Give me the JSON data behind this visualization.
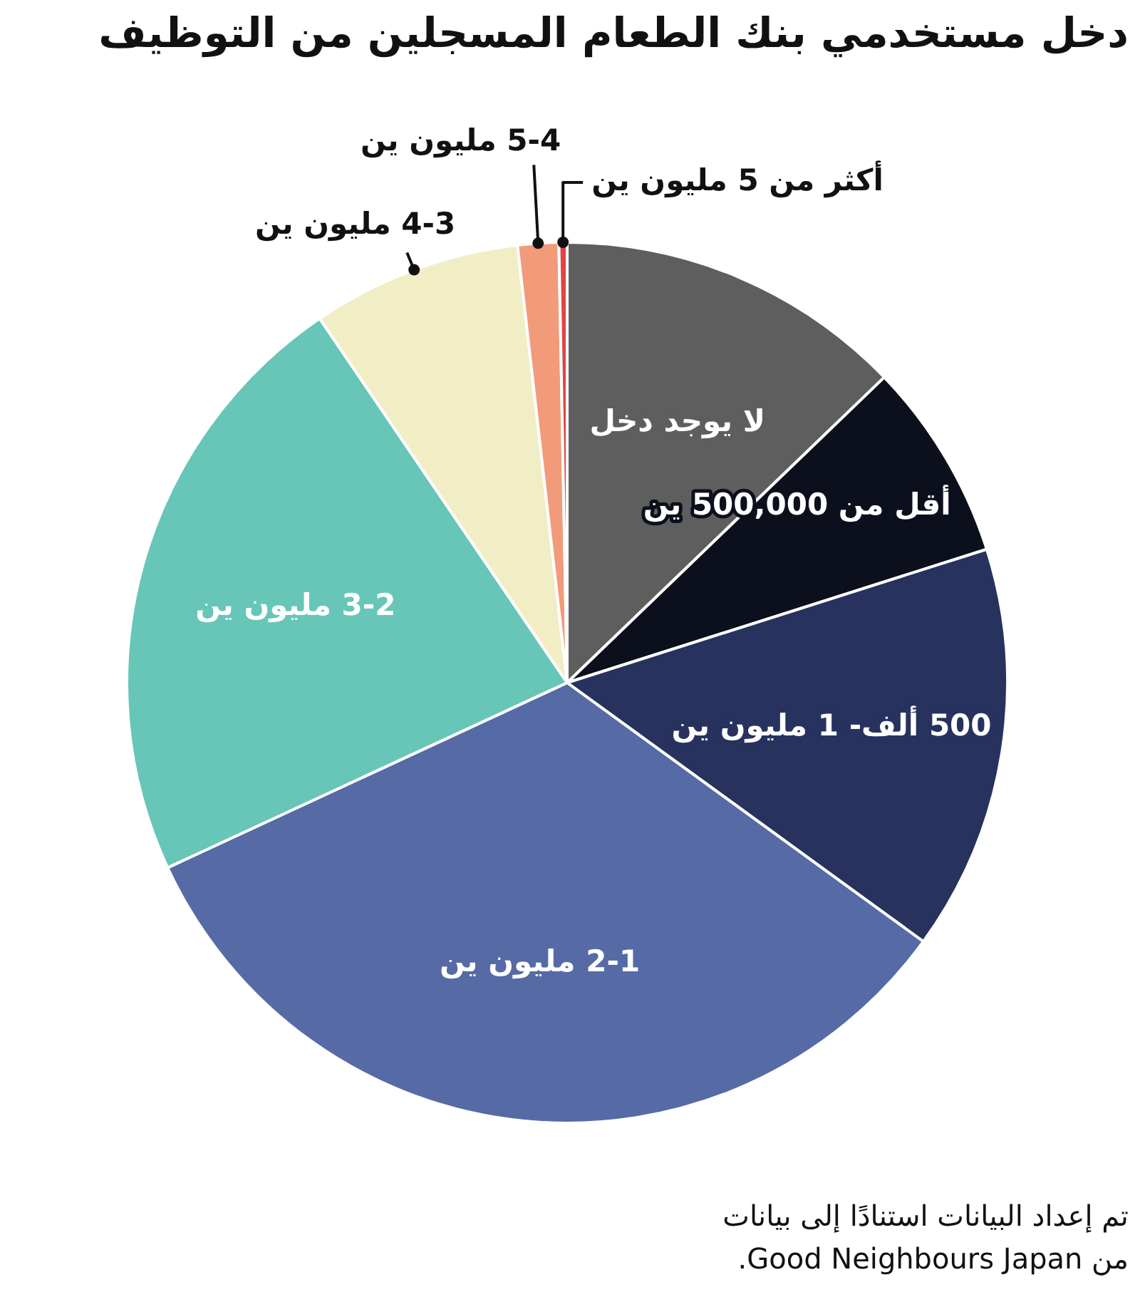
{
  "chart_data": {
    "type": "pie",
    "title": "دخل مستخدمي بنك الطعام المسجلين من التوظيف",
    "categories": [
      "لا يوجد دخل",
      "أقل من 500,000 ين",
      "500 ألف- 1 مليون ين",
      "2-1 مليون ين",
      "3-2 مليون ين",
      "4-3 مليون ين",
      "5-4 مليون ين",
      "أكثر من 5 مليون ين"
    ],
    "values": [
      12.8,
      7.3,
      14.9,
      33.1,
      22.4,
      7.7,
      1.5,
      0.3
    ],
    "colors": [
      "#5e5e5e",
      "#0c0f1c",
      "#27335e",
      "#566aa6",
      "#67c6b8",
      "#f1edc5",
      "#f19b7b",
      "#e04545"
    ],
    "annotations": [
      "تم إعداد البيانات استنادًا إلى بيانات من Good Neighbours Japan."
    ]
  }
}
